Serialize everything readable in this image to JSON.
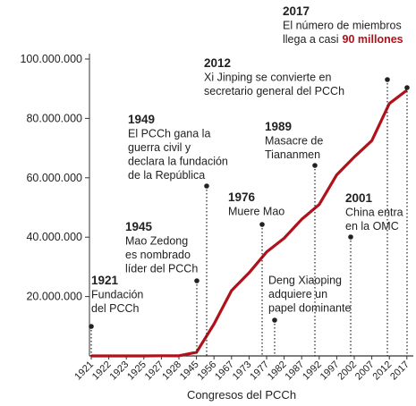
{
  "chart_data": {
    "type": "line",
    "x_label": "Congresos del PCCh",
    "categories": [
      "1921",
      "1922",
      "1923",
      "1925",
      "1927",
      "1928",
      "1945",
      "1956",
      "1967",
      "1973",
      "1977",
      "1982",
      "1987",
      "1992",
      "1997",
      "2002",
      "2007",
      "2012",
      "2017"
    ],
    "series": [
      {
        "color": "#b0121b",
        "values": [
          50,
          200,
          400,
          1000,
          58000,
          40000,
          1210000,
          10730000,
          22000000,
          28000000,
          35000000,
          39650000,
          46000000,
          51000000,
          61000000,
          67000000,
          72500000,
          85000000,
          89500000
        ]
      }
    ],
    "ylim": [
      0,
      100000000
    ],
    "yticks": [
      {
        "value": 20000000,
        "label": "20.000.000"
      },
      {
        "value": 40000000,
        "label": "40.000.000"
      },
      {
        "value": 60000000,
        "label": "60.000.000"
      },
      {
        "value": 80000000,
        "label": "80.000.000"
      },
      {
        "value": 100000000,
        "label": "100.000.000"
      }
    ],
    "annotations": [
      {
        "year": "1921",
        "lines": [
          "Fundación",
          "del PCCh"
        ]
      },
      {
        "year": "1945",
        "lines": [
          "Mao Zedong",
          "es nombrado",
          "líder del PCCh"
        ]
      },
      {
        "year": "1949",
        "lines": [
          "El PCCh gana la",
          "guerra civil y",
          "declara la fundación",
          "de la República"
        ]
      },
      {
        "year": "1976",
        "lines": [
          "Muere Mao"
        ]
      },
      {
        "lines": [
          "Deng Xiaoping",
          "adquiere un",
          "papel dominante"
        ]
      },
      {
        "year": "1989",
        "lines": [
          "Masacre de",
          "Tiananmen"
        ]
      },
      {
        "year": "2001",
        "lines": [
          "China entra",
          "en la OMC"
        ]
      },
      {
        "year": "2012",
        "lines": [
          "Xi Jinping se convierte en",
          "secretario general del PCCh"
        ]
      },
      {
        "year": "2017",
        "lines": [
          "El número de miembros",
          "llega a casi"
        ],
        "highlight": "90 millones"
      }
    ]
  }
}
